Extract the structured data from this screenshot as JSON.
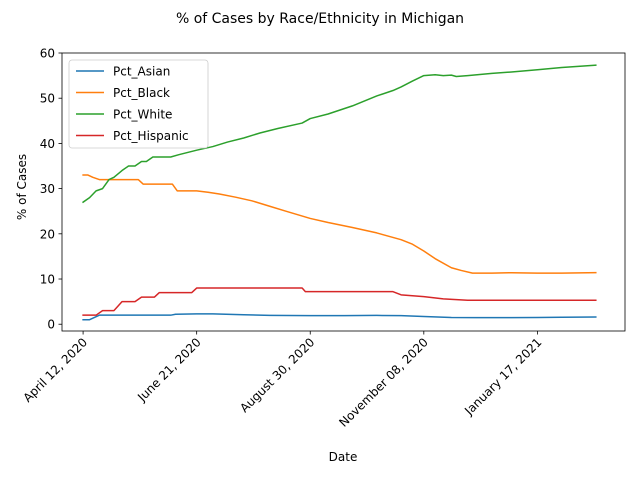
{
  "chart_data": {
    "type": "line",
    "title": "% of Cases by Race/Ethnicity in Michigan",
    "xlabel": "Date",
    "ylabel": "% of Cases",
    "ylim": [
      -1.5,
      60
    ],
    "yticks": [
      0,
      10,
      20,
      30,
      40,
      50,
      60
    ],
    "xticks": [
      {
        "date": "2020-04-12",
        "label": "April 12, 2020"
      },
      {
        "date": "2020-06-21",
        "label": "June 21, 2020"
      },
      {
        "date": "2020-08-30",
        "label": "August 30, 2020"
      },
      {
        "date": "2020-11-08",
        "label": "November 08, 2020"
      },
      {
        "date": "2021-01-17",
        "label": "January 17, 2021"
      }
    ],
    "xlim": [
      "2020-03-30",
      "2021-03-12"
    ],
    "legend": "upper-left",
    "grid": false,
    "series": [
      {
        "name": "Pct_Asian",
        "color": "#1f77b4",
        "points": [
          [
            "2020-04-12",
            1
          ],
          [
            "2020-04-16",
            1
          ],
          [
            "2020-04-22",
            2
          ],
          [
            "2020-05-01",
            2
          ],
          [
            "2020-05-15",
            2
          ],
          [
            "2020-06-05",
            2
          ],
          [
            "2020-06-08",
            2.2
          ],
          [
            "2020-06-21",
            2.3
          ],
          [
            "2020-07-01",
            2.3
          ],
          [
            "2020-07-20",
            2.1
          ],
          [
            "2020-08-05",
            1.95
          ],
          [
            "2020-08-30",
            1.9
          ],
          [
            "2020-09-20",
            1.9
          ],
          [
            "2020-10-10",
            1.95
          ],
          [
            "2020-10-25",
            1.9
          ],
          [
            "2020-11-08",
            1.7
          ],
          [
            "2020-11-25",
            1.5
          ],
          [
            "2020-12-10",
            1.45
          ],
          [
            "2021-01-01",
            1.45
          ],
          [
            "2021-01-17",
            1.5
          ],
          [
            "2021-02-01",
            1.55
          ],
          [
            "2021-02-22",
            1.6
          ]
        ]
      },
      {
        "name": "Pct_Black",
        "color": "#ff7f0e",
        "points": [
          [
            "2020-04-12",
            33
          ],
          [
            "2020-04-15",
            33
          ],
          [
            "2020-04-18",
            32.5
          ],
          [
            "2020-04-22",
            32
          ],
          [
            "2020-05-01",
            32
          ],
          [
            "2020-05-16",
            32
          ],
          [
            "2020-05-19",
            31
          ],
          [
            "2020-05-25",
            31
          ],
          [
            "2020-06-01",
            31
          ],
          [
            "2020-06-06",
            31
          ],
          [
            "2020-06-09",
            29.5
          ],
          [
            "2020-06-21",
            29.5
          ],
          [
            "2020-06-28",
            29.2
          ],
          [
            "2020-07-05",
            28.8
          ],
          [
            "2020-07-15",
            28.1
          ],
          [
            "2020-07-25",
            27.3
          ],
          [
            "2020-08-05",
            26.1
          ],
          [
            "2020-08-15",
            25
          ],
          [
            "2020-08-30",
            23.4
          ],
          [
            "2020-09-10",
            22.5
          ],
          [
            "2020-09-25",
            21.4
          ],
          [
            "2020-10-10",
            20.2
          ],
          [
            "2020-10-25",
            18.7
          ],
          [
            "2020-11-01",
            17.7
          ],
          [
            "2020-11-08",
            16.2
          ],
          [
            "2020-11-15",
            14.5
          ],
          [
            "2020-11-25",
            12.5
          ],
          [
            "2020-12-01",
            11.9
          ],
          [
            "2020-12-08",
            11.3
          ],
          [
            "2020-12-20",
            11.3
          ],
          [
            "2021-01-01",
            11.4
          ],
          [
            "2021-01-17",
            11.3
          ],
          [
            "2021-02-01",
            11.3
          ],
          [
            "2021-02-22",
            11.4
          ]
        ]
      },
      {
        "name": "Pct_White",
        "color": "#2ca02c",
        "points": [
          [
            "2020-04-12",
            27
          ],
          [
            "2020-04-16",
            28
          ],
          [
            "2020-04-20",
            29.5
          ],
          [
            "2020-04-24",
            30
          ],
          [
            "2020-04-28",
            32
          ],
          [
            "2020-05-01",
            32.5
          ],
          [
            "2020-05-06",
            34
          ],
          [
            "2020-05-10",
            35
          ],
          [
            "2020-05-14",
            35
          ],
          [
            "2020-05-18",
            36
          ],
          [
            "2020-05-21",
            36
          ],
          [
            "2020-05-25",
            37
          ],
          [
            "2020-06-05",
            37
          ],
          [
            "2020-06-10",
            37.5
          ],
          [
            "2020-06-21",
            38.5
          ],
          [
            "2020-07-01",
            39.3
          ],
          [
            "2020-07-10",
            40.3
          ],
          [
            "2020-07-20",
            41.2
          ],
          [
            "2020-07-30",
            42.3
          ],
          [
            "2020-08-10",
            43.3
          ],
          [
            "2020-08-25",
            44.5
          ],
          [
            "2020-08-30",
            45.5
          ],
          [
            "2020-09-10",
            46.5
          ],
          [
            "2020-09-25",
            48.3
          ],
          [
            "2020-10-10",
            50.5
          ],
          [
            "2020-10-20",
            51.7
          ],
          [
            "2020-10-25",
            52.5
          ],
          [
            "2020-11-01",
            53.8
          ],
          [
            "2020-11-08",
            55
          ],
          [
            "2020-11-15",
            55.2
          ],
          [
            "2020-11-20",
            55
          ],
          [
            "2020-11-25",
            55.1
          ],
          [
            "2020-11-28",
            54.8
          ],
          [
            "2020-12-05",
            55
          ],
          [
            "2020-12-20",
            55.5
          ],
          [
            "2021-01-01",
            55.8
          ],
          [
            "2021-01-17",
            56.3
          ],
          [
            "2021-02-01",
            56.8
          ],
          [
            "2021-02-22",
            57.3
          ]
        ]
      },
      {
        "name": "Pct_Hispanic",
        "color": "#d62728",
        "points": [
          [
            "2020-04-12",
            2
          ],
          [
            "2020-04-20",
            2
          ],
          [
            "2020-04-24",
            3
          ],
          [
            "2020-05-01",
            3
          ],
          [
            "2020-05-06",
            5
          ],
          [
            "2020-05-14",
            5
          ],
          [
            "2020-05-18",
            6
          ],
          [
            "2020-05-26",
            6
          ],
          [
            "2020-05-29",
            7
          ],
          [
            "2020-06-10",
            7
          ],
          [
            "2020-06-18",
            7
          ],
          [
            "2020-06-21",
            8
          ],
          [
            "2020-07-01",
            8
          ],
          [
            "2020-08-01",
            8
          ],
          [
            "2020-08-25",
            8
          ],
          [
            "2020-08-27",
            7.2
          ],
          [
            "2020-09-15",
            7.2
          ],
          [
            "2020-10-20",
            7.2
          ],
          [
            "2020-10-25",
            6.5
          ],
          [
            "2020-11-08",
            6.1
          ],
          [
            "2020-11-20",
            5.6
          ],
          [
            "2020-12-05",
            5.3
          ],
          [
            "2021-01-01",
            5.3
          ],
          [
            "2021-01-17",
            5.3
          ],
          [
            "2021-02-22",
            5.3
          ]
        ]
      }
    ]
  }
}
